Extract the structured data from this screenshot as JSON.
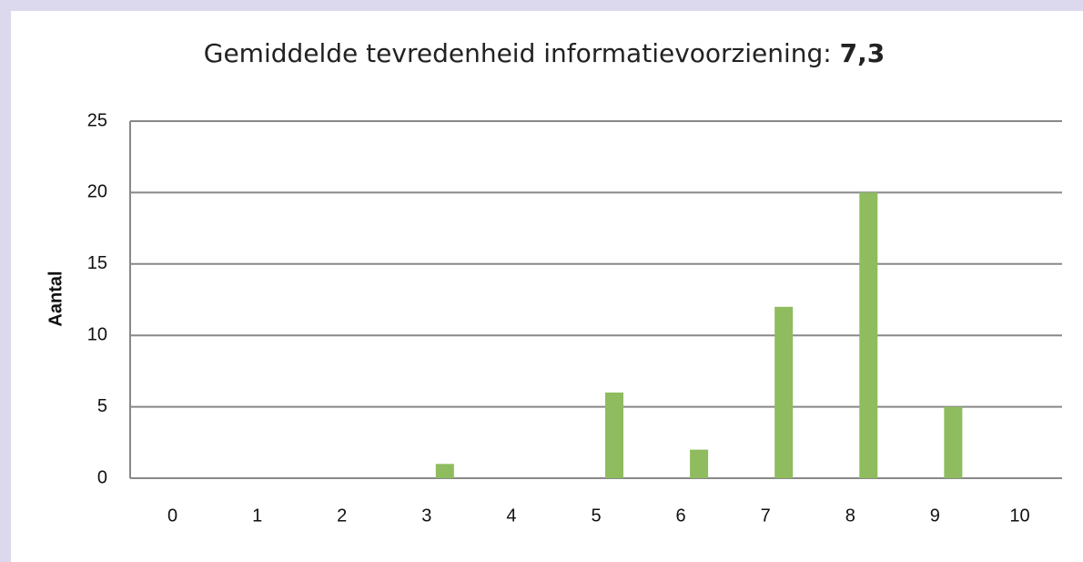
{
  "chart_data": {
    "type": "bar",
    "title": "Gemiddelde tevredenheid informatievoorziening:",
    "title_emphasis": "7,3",
    "ylabel": "Aantal",
    "categories": [
      "0",
      "1",
      "2",
      "3",
      "4",
      "5",
      "6",
      "7",
      "8",
      "9",
      "10"
    ],
    "values": [
      0,
      0,
      0,
      1,
      0,
      6,
      2,
      12,
      20,
      5,
      0
    ],
    "color": "#8fbc5f",
    "ylim": [
      0,
      25
    ],
    "yticks": [
      0,
      5,
      10,
      15,
      20,
      25
    ],
    "grid": true
  }
}
